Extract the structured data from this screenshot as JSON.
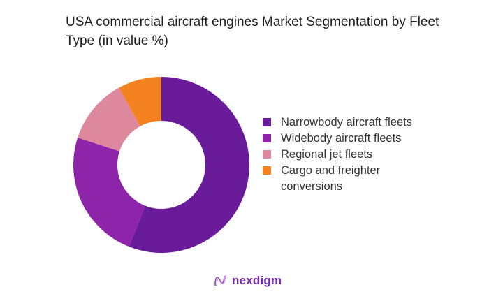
{
  "chart_data": {
    "type": "pie",
    "donut": true,
    "title": "USA commercial aircraft engines Market Segmentation by Fleet Type (in value %)",
    "categories": [
      "Narrowbody aircraft fleets",
      "Widebody aircraft fleets",
      "Regional jet fleets",
      "Cargo and freighter conversions"
    ],
    "values": [
      56,
      24,
      12,
      8
    ],
    "colors": [
      "#6a1b9a",
      "#8e24aa",
      "#de889e",
      "#f58220"
    ],
    "legend_position": "right"
  },
  "logo": {
    "text": "nexdigm",
    "color": "#7a2bb5"
  }
}
